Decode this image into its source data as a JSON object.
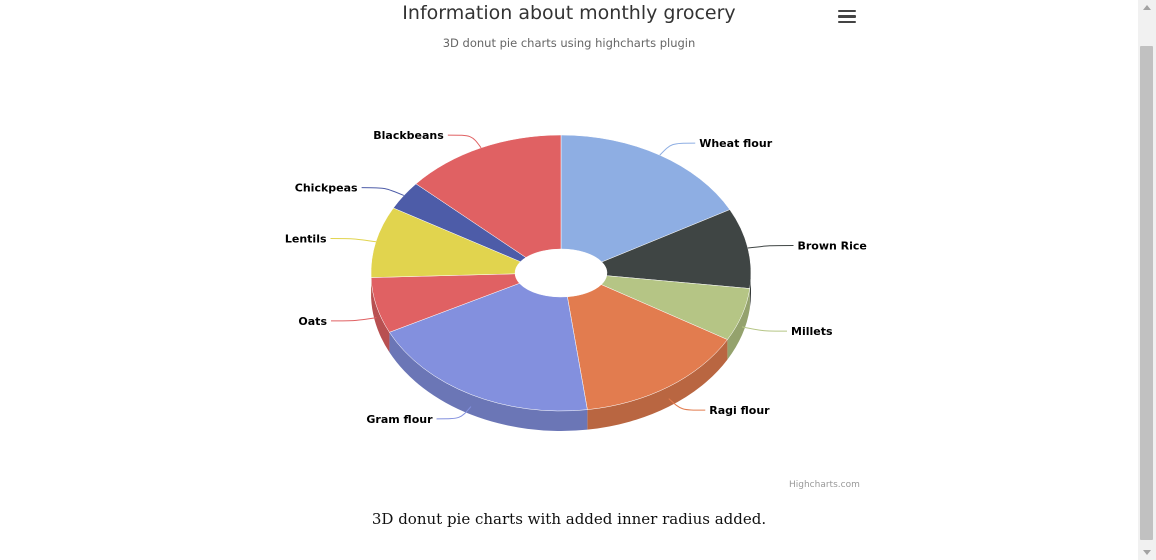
{
  "chart_data": {
    "type": "pie",
    "variant": "3d-donut",
    "title": "Information about monthly grocery",
    "subtitle": "3D donut pie charts using highcharts plugin",
    "categories": [
      "Wheat flour",
      "Brown Rice",
      "Millets",
      "Ragi flour",
      "Gram flour",
      "Oats",
      "Lentils",
      "Chickpeas",
      "Blackbeans"
    ],
    "values": [
      16.5,
      8.9,
      5.9,
      14.0,
      19.1,
      6.2,
      7.9,
      3.2,
      13.1
    ],
    "colors": [
      "#8eaee3",
      "#3f4544",
      "#b5c585",
      "#e27c4f",
      "#8390de",
      "#e06163",
      "#e1d44e",
      "#4d5ca8",
      "#e06163"
    ],
    "legend": "none",
    "data_labels": "outside-with-connectors"
  },
  "chart_menu": {
    "icon": "hamburger-menu-icon"
  },
  "credits": "Highcharts.com",
  "caption": "3D donut pie charts with added inner radius added.",
  "scrollbar": {
    "icon": "vertical-scrollbar"
  }
}
